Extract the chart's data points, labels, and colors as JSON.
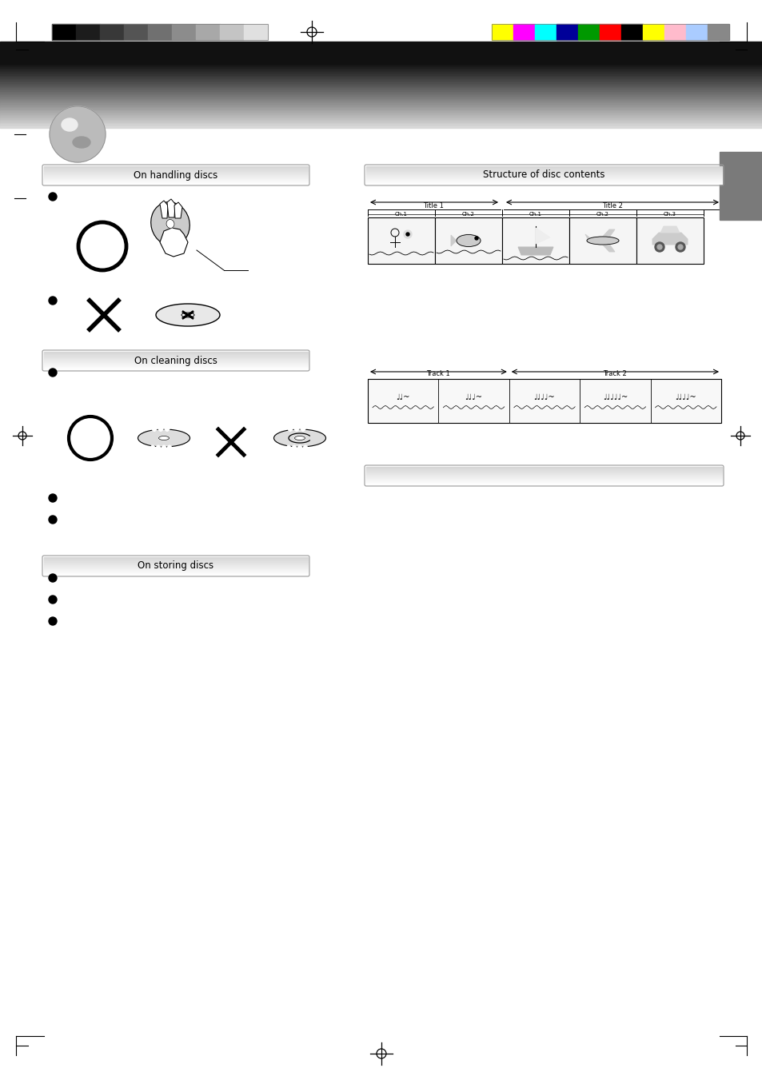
{
  "bg_color": "#ffffff",
  "page_width": 9.54,
  "page_height": 13.51,
  "gray_tab_color": "#7a7a7a",
  "bar_colors_left": [
    "#000000",
    "#1c1c1c",
    "#383838",
    "#545454",
    "#707070",
    "#8c8c8c",
    "#a8a8a8",
    "#c4c4c4",
    "#e0e0e0"
  ],
  "bar_colors_right": [
    "#ffff00",
    "#ff00ff",
    "#00ffff",
    "#000099",
    "#009900",
    "#ff0000",
    "#000000",
    "#ffff00",
    "#ffbbcc",
    "#aaccff",
    "#888888"
  ],
  "sections": {
    "handling_title": "On handling discs",
    "cleaning_title": "On cleaning discs",
    "storing_title": "On storing discs",
    "structure_title": "Structure of disc contents"
  },
  "vid_thumb_labels_title": [
    "Title 1",
    "Title 2"
  ],
  "vid_thumb_labels_ch": [
    "Ch.1",
    "Ch.2",
    "Ch.1",
    "Ch.2",
    "Ch.3"
  ],
  "aud_track_labels": [
    "Track 1",
    "Track 2"
  ]
}
